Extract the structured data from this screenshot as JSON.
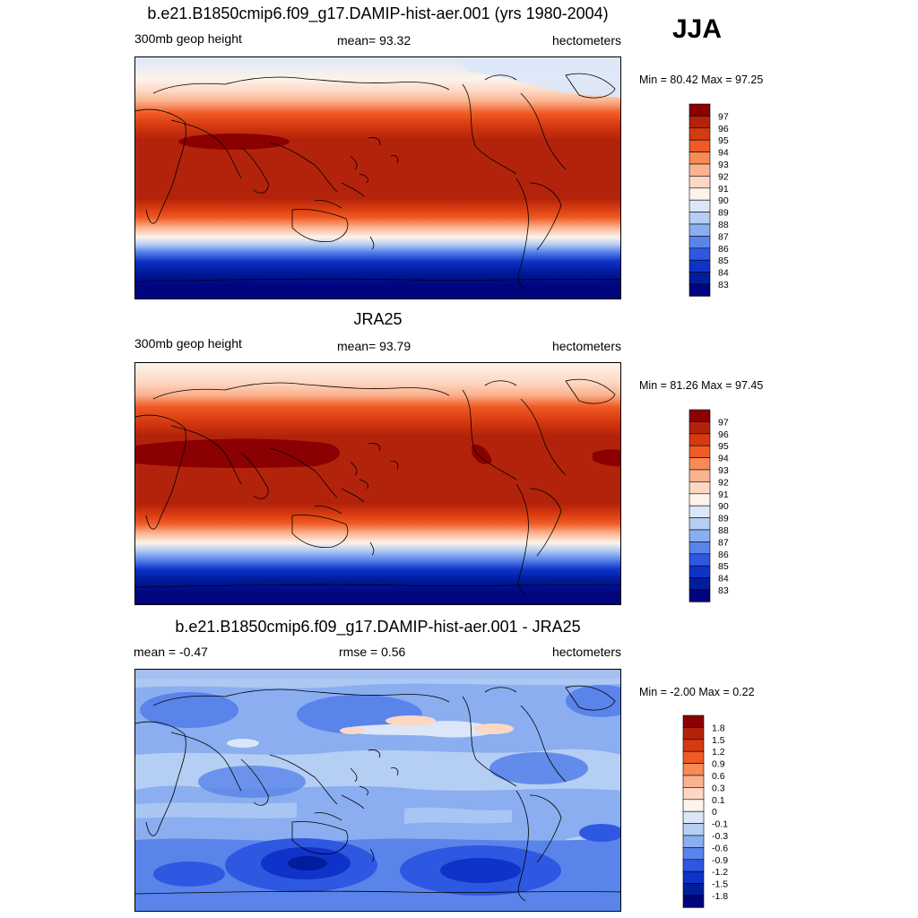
{
  "season": "JJA",
  "panels": [
    {
      "title": "b.e21.B1850cmip6.f09_g17.DAMIP-hist-aer.001 (yrs 1980-2004)",
      "left": "300mb geop height",
      "center": "mean=  93.32",
      "right": "hectometers",
      "minmax": "Min =  80.42 Max =  97.25"
    },
    {
      "title": "JRA25",
      "left": "300mb geop height",
      "center": "mean=  93.79",
      "right": "hectometers",
      "minmax": "Min =  81.26 Max =  97.45"
    },
    {
      "title": "b.e21.B1850cmip6.f09_g17.DAMIP-hist-aer.001 - JRA25",
      "left": "mean =  -0.47",
      "center": "rmse =   0.56",
      "right": "hectometers",
      "minmax": "Min =  -2.00 Max =   0.22"
    }
  ],
  "chart_data": [
    {
      "type": "heatmap",
      "title": "b.e21.B1850cmip6.f09_g17.DAMIP-hist-aer.001 (yrs 1980-2004)",
      "field": "300mb geop height",
      "units": "hectometers",
      "mean": 93.32,
      "min": 80.42,
      "max": 97.25,
      "colorbar_levels": [
        97,
        96,
        95,
        94,
        93,
        92,
        91,
        90,
        89,
        88,
        87,
        86,
        85,
        84,
        83
      ],
      "colorbar_colors": [
        "#8b0000",
        "#b3230b",
        "#d63a0f",
        "#f05a24",
        "#f88a56",
        "#fbb38f",
        "#fdd7c2",
        "#fdf3ea",
        "#dbe7f8",
        "#b5cef3",
        "#8aaef0",
        "#5a84ea",
        "#2e57e2",
        "#0f32c8",
        "#001d9c",
        "#00047f"
      ],
      "zonal_profile_hm": [
        {
          "lat": 90,
          "value": 89.5
        },
        {
          "lat": 70,
          "value": 91.5
        },
        {
          "lat": 55,
          "value": 93.5
        },
        {
          "lat": 40,
          "value": 95.5
        },
        {
          "lat": 25,
          "value": 96.5
        },
        {
          "lat": 0,
          "value": 96.3
        },
        {
          "lat": -20,
          "value": 96.0
        },
        {
          "lat": -30,
          "value": 94.0
        },
        {
          "lat": -40,
          "value": 91.0
        },
        {
          "lat": -50,
          "value": 88.0
        },
        {
          "lat": -60,
          "value": 85.0
        },
        {
          "lat": -75,
          "value": 83.0
        },
        {
          "lat": -90,
          "value": 82.5
        }
      ]
    },
    {
      "type": "heatmap",
      "title": "JRA25",
      "field": "300mb geop height",
      "units": "hectometers",
      "mean": 93.79,
      "min": 81.26,
      "max": 97.45,
      "colorbar_levels": [
        97,
        96,
        95,
        94,
        93,
        92,
        91,
        90,
        89,
        88,
        87,
        86,
        85,
        84,
        83
      ],
      "colorbar_colors": [
        "#8b0000",
        "#b3230b",
        "#d63a0f",
        "#f05a24",
        "#f88a56",
        "#fbb38f",
        "#fdd7c2",
        "#fdf3ea",
        "#dbe7f8",
        "#b5cef3",
        "#8aaef0",
        "#5a84ea",
        "#2e57e2",
        "#0f32c8",
        "#001d9c",
        "#00047f"
      ],
      "zonal_profile_hm": [
        {
          "lat": 90,
          "value": 90.5
        },
        {
          "lat": 70,
          "value": 92.0
        },
        {
          "lat": 55,
          "value": 94.0
        },
        {
          "lat": 40,
          "value": 95.5
        },
        {
          "lat": 25,
          "value": 96.5
        },
        {
          "lat": 0,
          "value": 96.5
        },
        {
          "lat": -20,
          "value": 96.0
        },
        {
          "lat": -30,
          "value": 94.0
        },
        {
          "lat": -40,
          "value": 91.0
        },
        {
          "lat": -50,
          "value": 88.0
        },
        {
          "lat": -60,
          "value": 85.5
        },
        {
          "lat": -75,
          "value": 83.5
        },
        {
          "lat": -90,
          "value": 83.0
        }
      ]
    },
    {
      "type": "heatmap",
      "title": "b.e21.B1850cmip6.f09_g17.DAMIP-hist-aer.001 - JRA25",
      "field": "difference",
      "units": "hectometers",
      "mean": -0.47,
      "rmse": 0.56,
      "min": -2.0,
      "max": 0.22,
      "colorbar_levels": [
        "1.8",
        "1.5",
        "1.2",
        "0.9",
        "0.6",
        "0.3",
        "0.1",
        "0",
        "-0.1",
        "-0.3",
        "-0.6",
        "-0.9",
        "-1.2",
        "-1.5",
        "-1.8"
      ],
      "colorbar_colors": [
        "#8b0000",
        "#b3230b",
        "#d63a0f",
        "#f05a24",
        "#f88a56",
        "#fbb38f",
        "#fdd7c2",
        "#fdf3ea",
        "#dbe7f8",
        "#b5cef3",
        "#8aaef0",
        "#5a84ea",
        "#2e57e2",
        "#0f32c8",
        "#001d9c",
        "#00047f"
      ],
      "typical_value": -0.45
    }
  ]
}
